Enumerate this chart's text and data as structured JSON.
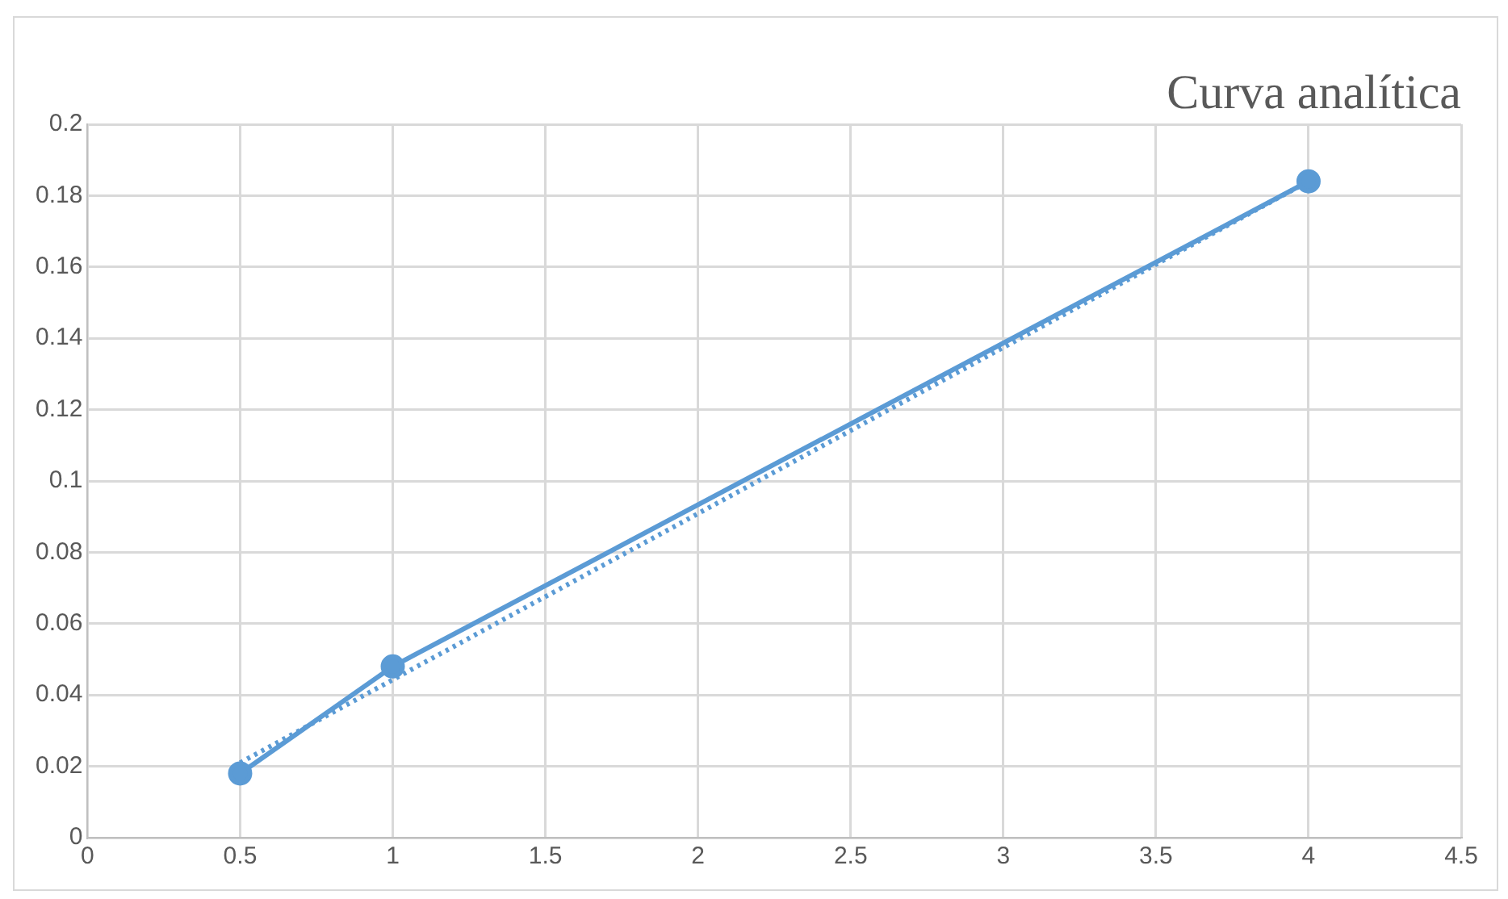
{
  "chart_data": {
    "type": "line",
    "title": "Curva analítica",
    "xlim": [
      0,
      4.5
    ],
    "xticks": [
      0,
      0.5,
      1,
      1.5,
      2,
      2.5,
      3,
      3.5,
      4,
      4.5
    ],
    "ylim": [
      0,
      0.2
    ],
    "yticks": [
      0,
      0.02,
      0.04,
      0.06,
      0.08,
      0.1,
      0.12,
      0.14,
      0.16,
      0.18,
      0.2
    ],
    "grid": true,
    "legend": false,
    "marker": "circle",
    "line_style": "solid",
    "series": [
      {
        "color": "#5b9bd5",
        "x": [
          0.5,
          1,
          4
        ],
        "values": [
          0.018,
          0.048,
          0.184
        ]
      },
      {
        "color": "#5b9bd5",
        "x": [
          0.5,
          4
        ],
        "values": [
          0.021,
          0.184
        ],
        "marker": "none",
        "line_style": "dotted"
      }
    ]
  }
}
